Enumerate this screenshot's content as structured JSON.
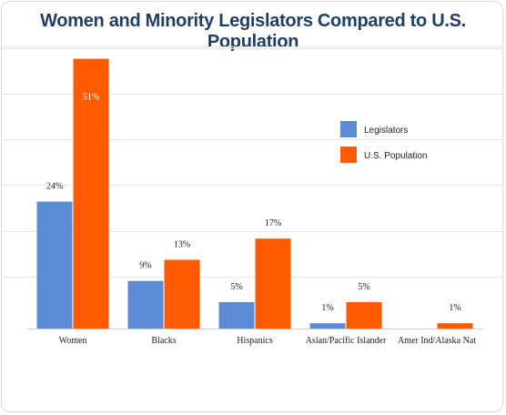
{
  "chart_data": {
    "type": "bar",
    "title": "Women and Minority Legislators Compared to U.S. Population",
    "categories": [
      "Women",
      "Blacks",
      "Hispanics",
      "Asian/Pacific Islander",
      "Amer Ind/Alaska Nat"
    ],
    "series": [
      {
        "name": "Legislators",
        "values": [
          24,
          9,
          5,
          1,
          0
        ],
        "labels": [
          "24%",
          "9%",
          "5%",
          "1%",
          ""
        ],
        "color": "#5b8bd4"
      },
      {
        "name": "U.S. Population",
        "values": [
          51,
          13,
          17,
          5,
          1
        ],
        "labels": [
          "51%",
          "13%",
          "17%",
          "5%",
          "1%"
        ],
        "color": "#ff5a00"
      }
    ],
    "ylim": [
      0,
      53
    ],
    "grid": true,
    "legend_position": "top-right"
  }
}
